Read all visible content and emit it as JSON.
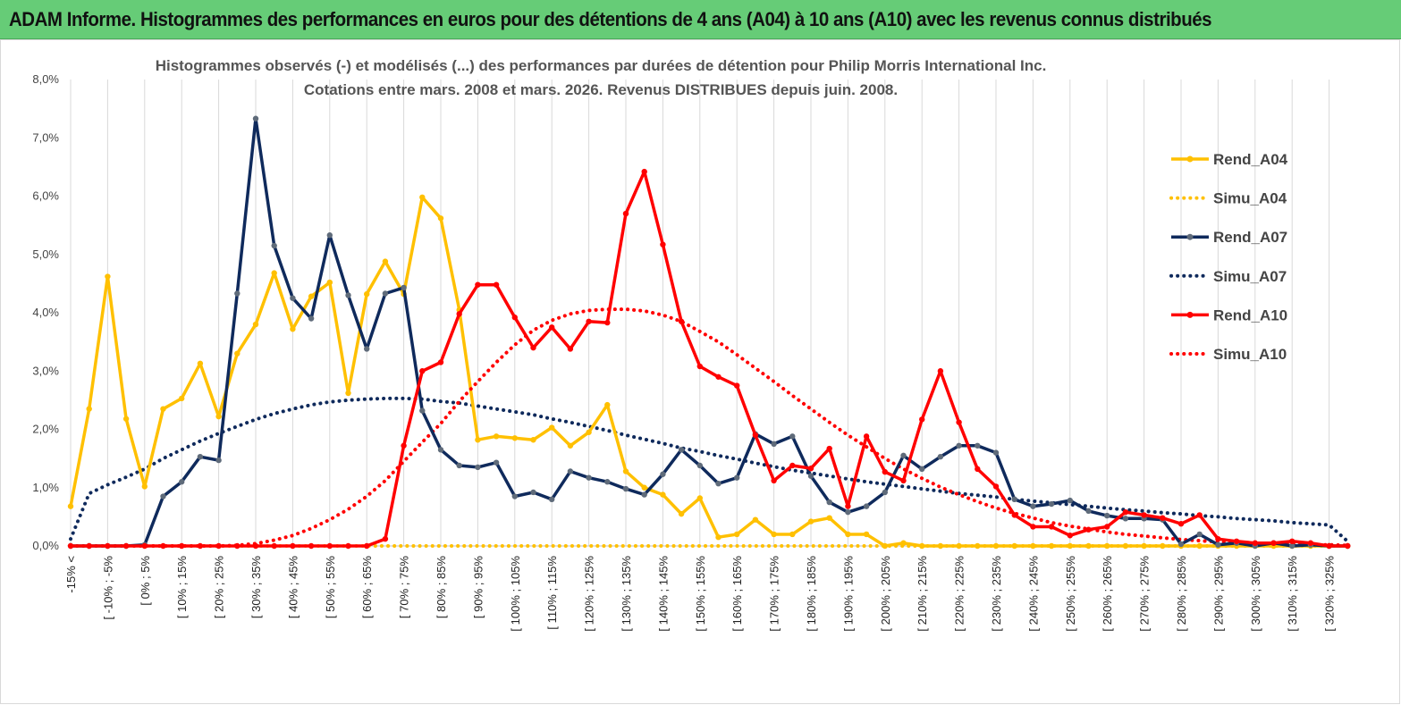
{
  "header": {
    "title": "ADAM Informe. Histogrammes des performances en euros pour des détentions de 4 ans (A04) à 10 ans (A10) avec les revenus connus distribués",
    "background": "#66cc77"
  },
  "chart_data": {
    "type": "line",
    "title_line1": "Histogrammes observés (-) et modélisés (...) des performances par durées de détention pour Philip Morris International Inc.",
    "title_line2": "Cotations entre mars. 2008 et mars. 2026. Revenus DISTRIBUES depuis juin. 2008.",
    "ylim": [
      0,
      8
    ],
    "yticks": [
      0,
      1,
      2,
      3,
      4,
      5,
      6,
      7,
      8
    ],
    "ytick_labels": [
      "0,0%",
      "1,0%",
      "2,0%",
      "3,0%",
      "4,0%",
      "5,0%",
      "6,0%",
      "7,0%",
      "8,0%"
    ],
    "xtick_labels": [
      "-15% <",
      "[ -10% ; -5%",
      "[ 0% ; 5%",
      "[ 10% ; 15%",
      "[ 20% ; 25%",
      "[ 30% ; 35%",
      "[ 40% ; 45%",
      "[ 50% ; 55%",
      "[ 60% ; 65%",
      "[ 70% ; 75%",
      "[ 80% ; 85%",
      "[ 90% ; 95%",
      "[ 100% ; 105%",
      "[ 110% ; 115%",
      "[ 120% ; 125%",
      "[ 130% ; 135%",
      "[ 140% ; 145%",
      "[ 150% ; 155%",
      "[ 160% ; 165%",
      "[ 170% ; 175%",
      "[ 180% ; 185%",
      "[ 190% ; 195%",
      "[ 200% ; 205%",
      "[ 210% ; 215%",
      "[ 220% ; 225%",
      "[ 230% ; 235%",
      "[ 240% ; 245%",
      "[ 250% ; 255%",
      "[ 260% ; 265%",
      "[ 270% ; 275%",
      "[ 280% ; 285%",
      "[ 290% ; 295%",
      "[ 300% ; 305%",
      "[ 310% ; 315%",
      "[ 320% ; 325%"
    ],
    "bins": 70,
    "series": [
      {
        "name": "Rend_A04",
        "style": "solid",
        "color": "#ffc000",
        "marker_color": "#ffc000",
        "values": [
          0.68,
          2.35,
          4.62,
          2.18,
          1.02,
          2.35,
          2.53,
          3.13,
          2.22,
          3.3,
          3.8,
          4.68,
          3.72,
          4.28,
          4.52,
          2.62,
          4.32,
          4.88,
          4.32,
          5.98,
          5.62,
          4.05,
          1.82,
          1.88,
          1.85,
          1.82,
          2.03,
          1.72,
          1.95,
          2.42,
          1.28,
          1.0,
          0.88,
          0.55,
          0.82,
          0.15,
          0.2,
          0.45,
          0.2,
          0.2,
          0.42,
          0.48,
          0.2,
          0.2,
          0.0,
          0.05,
          0.0,
          0.0,
          0.0,
          0.0,
          0.0,
          0.0,
          0.0,
          0.0,
          0.0,
          0.0,
          0.0,
          0.0,
          0.0,
          0.0,
          0.0,
          0.0,
          0.0,
          0.0,
          0.0,
          0.0,
          0.0,
          0.0,
          0.0,
          0.0
        ]
      },
      {
        "name": "Simu_A04",
        "style": "dotted",
        "color": "#ffc000",
        "values": [
          0.0,
          0.0,
          0.0,
          0.0,
          0.0,
          0.0,
          0.0,
          0.0,
          0.0,
          0.0,
          0.0,
          0.0,
          0.0,
          0.0,
          0.0,
          0.0,
          0.0,
          0.0,
          0.0,
          0.0,
          0.0,
          0.0,
          0.0,
          0.0,
          0.0,
          0.0,
          0.0,
          0.0,
          0.0,
          0.0,
          0.0,
          0.0,
          0.0,
          0.0,
          0.0,
          0.0,
          0.0,
          0.0,
          0.0,
          0.0,
          0.0,
          0.0,
          0.0,
          0.0,
          0.0,
          0.0,
          0.0,
          0.0,
          0.0,
          0.0,
          0.0,
          0.0,
          0.0,
          0.0,
          0.0,
          0.0,
          0.0,
          0.0,
          0.0,
          0.0,
          0.0,
          0.0,
          0.0,
          0.0,
          0.0,
          0.0,
          0.0,
          0.0,
          0.0,
          0.0
        ]
      },
      {
        "name": "Rend_A07",
        "style": "solid",
        "color": "#0f2a5c",
        "marker_color": "#5f6b7a",
        "values": [
          0.0,
          0.0,
          0.0,
          0.0,
          0.02,
          0.85,
          1.1,
          1.53,
          1.47,
          4.33,
          7.33,
          5.15,
          4.25,
          3.9,
          5.33,
          4.3,
          3.38,
          4.33,
          4.43,
          2.32,
          1.65,
          1.38,
          1.35,
          1.43,
          0.85,
          0.92,
          0.8,
          1.28,
          1.17,
          1.1,
          0.98,
          0.88,
          1.23,
          1.65,
          1.38,
          1.07,
          1.17,
          1.92,
          1.75,
          1.88,
          1.2,
          0.75,
          0.58,
          0.68,
          0.92,
          1.55,
          1.32,
          1.53,
          1.72,
          1.72,
          1.6,
          0.8,
          0.68,
          0.72,
          0.78,
          0.6,
          0.52,
          0.47,
          0.47,
          0.45,
          0.03,
          0.2,
          0.02,
          0.05,
          0.0,
          0.05,
          0.0,
          0.02,
          0.0,
          0.0
        ]
      },
      {
        "name": "Simu_A07",
        "style": "dotted",
        "color": "#0f2a5c",
        "values": [
          0.12,
          0.9,
          1.05,
          1.18,
          1.32,
          1.5,
          1.65,
          1.8,
          1.93,
          2.05,
          2.17,
          2.27,
          2.35,
          2.42,
          2.47,
          2.5,
          2.52,
          2.53,
          2.53,
          2.52,
          2.48,
          2.45,
          2.4,
          2.35,
          2.3,
          2.25,
          2.18,
          2.12,
          2.05,
          1.98,
          1.9,
          1.83,
          1.76,
          1.68,
          1.62,
          1.55,
          1.49,
          1.42,
          1.36,
          1.3,
          1.25,
          1.2,
          1.15,
          1.1,
          1.06,
          1.02,
          0.98,
          0.94,
          0.9,
          0.87,
          0.84,
          0.8,
          0.77,
          0.74,
          0.71,
          0.68,
          0.65,
          0.62,
          0.6,
          0.57,
          0.55,
          0.52,
          0.5,
          0.47,
          0.45,
          0.43,
          0.4,
          0.38,
          0.36,
          0.08
        ]
      },
      {
        "name": "Rend_A10",
        "style": "solid",
        "color": "#ff0000",
        "marker_color": "#ff0000",
        "values": [
          0.0,
          0.0,
          0.0,
          0.0,
          0.0,
          0.0,
          0.0,
          0.0,
          0.0,
          0.0,
          0.0,
          0.0,
          0.0,
          0.0,
          0.0,
          0.0,
          0.0,
          0.12,
          1.72,
          3.0,
          3.15,
          3.98,
          4.48,
          4.48,
          3.92,
          3.4,
          3.75,
          3.38,
          3.85,
          3.83,
          5.7,
          6.42,
          5.17,
          3.85,
          3.08,
          2.9,
          2.75,
          1.9,
          1.12,
          1.38,
          1.33,
          1.67,
          0.68,
          1.88,
          1.27,
          1.12,
          2.17,
          3.0,
          2.12,
          1.32,
          1.02,
          0.53,
          0.33,
          0.33,
          0.18,
          0.28,
          0.33,
          0.58,
          0.53,
          0.48,
          0.38,
          0.53,
          0.12,
          0.08,
          0.05,
          0.05,
          0.08,
          0.05,
          0.0,
          0.0
        ]
      },
      {
        "name": "Simu_A10",
        "style": "dotted",
        "color": "#ff0000",
        "values": [
          0.0,
          0.0,
          0.0,
          0.0,
          0.0,
          0.0,
          0.0,
          0.0,
          0.0,
          0.01,
          0.04,
          0.1,
          0.18,
          0.3,
          0.45,
          0.63,
          0.85,
          1.12,
          1.45,
          1.78,
          2.1,
          2.48,
          2.82,
          3.15,
          3.45,
          3.7,
          3.87,
          3.98,
          4.04,
          4.06,
          4.06,
          4.03,
          3.96,
          3.85,
          3.68,
          3.5,
          3.28,
          3.05,
          2.82,
          2.58,
          2.35,
          2.12,
          1.9,
          1.7,
          1.5,
          1.32,
          1.16,
          1.01,
          0.88,
          0.76,
          0.65,
          0.56,
          0.48,
          0.4,
          0.34,
          0.29,
          0.24,
          0.2,
          0.17,
          0.14,
          0.11,
          0.09,
          0.07,
          0.06,
          0.05,
          0.04,
          0.03,
          0.02,
          0.02,
          0.01
        ]
      }
    ]
  }
}
